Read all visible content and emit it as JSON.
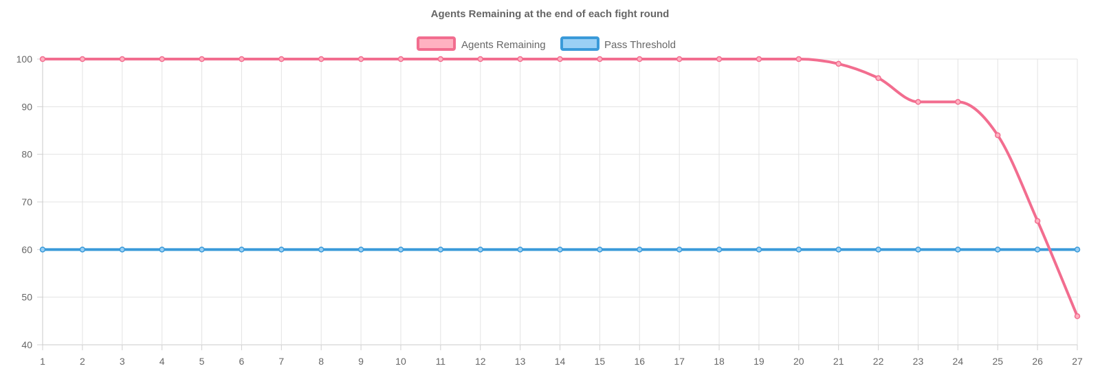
{
  "chart_data": {
    "type": "line",
    "title": "Agents Remaining at the end of each fight round",
    "x": [
      1,
      2,
      3,
      4,
      5,
      6,
      7,
      8,
      9,
      10,
      11,
      12,
      13,
      14,
      15,
      16,
      17,
      18,
      19,
      20,
      21,
      22,
      23,
      24,
      25,
      26,
      27
    ],
    "ylim": [
      40,
      100
    ],
    "yticks": [
      40,
      50,
      60,
      70,
      80,
      90,
      100
    ],
    "grid": true,
    "legend_position": "top",
    "series": [
      {
        "name": "Agents Remaining",
        "color": "#f26d8f",
        "fill": "#ffb1c1",
        "values": [
          100,
          100,
          100,
          100,
          100,
          100,
          100,
          100,
          100,
          100,
          100,
          100,
          100,
          100,
          100,
          100,
          100,
          100,
          100,
          100,
          99,
          96,
          91,
          91,
          84,
          66,
          46
        ]
      },
      {
        "name": "Pass Threshold",
        "color": "#3a9ad9",
        "fill": "#9ad0f5",
        "values": [
          60,
          60,
          60,
          60,
          60,
          60,
          60,
          60,
          60,
          60,
          60,
          60,
          60,
          60,
          60,
          60,
          60,
          60,
          60,
          60,
          60,
          60,
          60,
          60,
          60,
          60,
          60
        ]
      }
    ]
  }
}
